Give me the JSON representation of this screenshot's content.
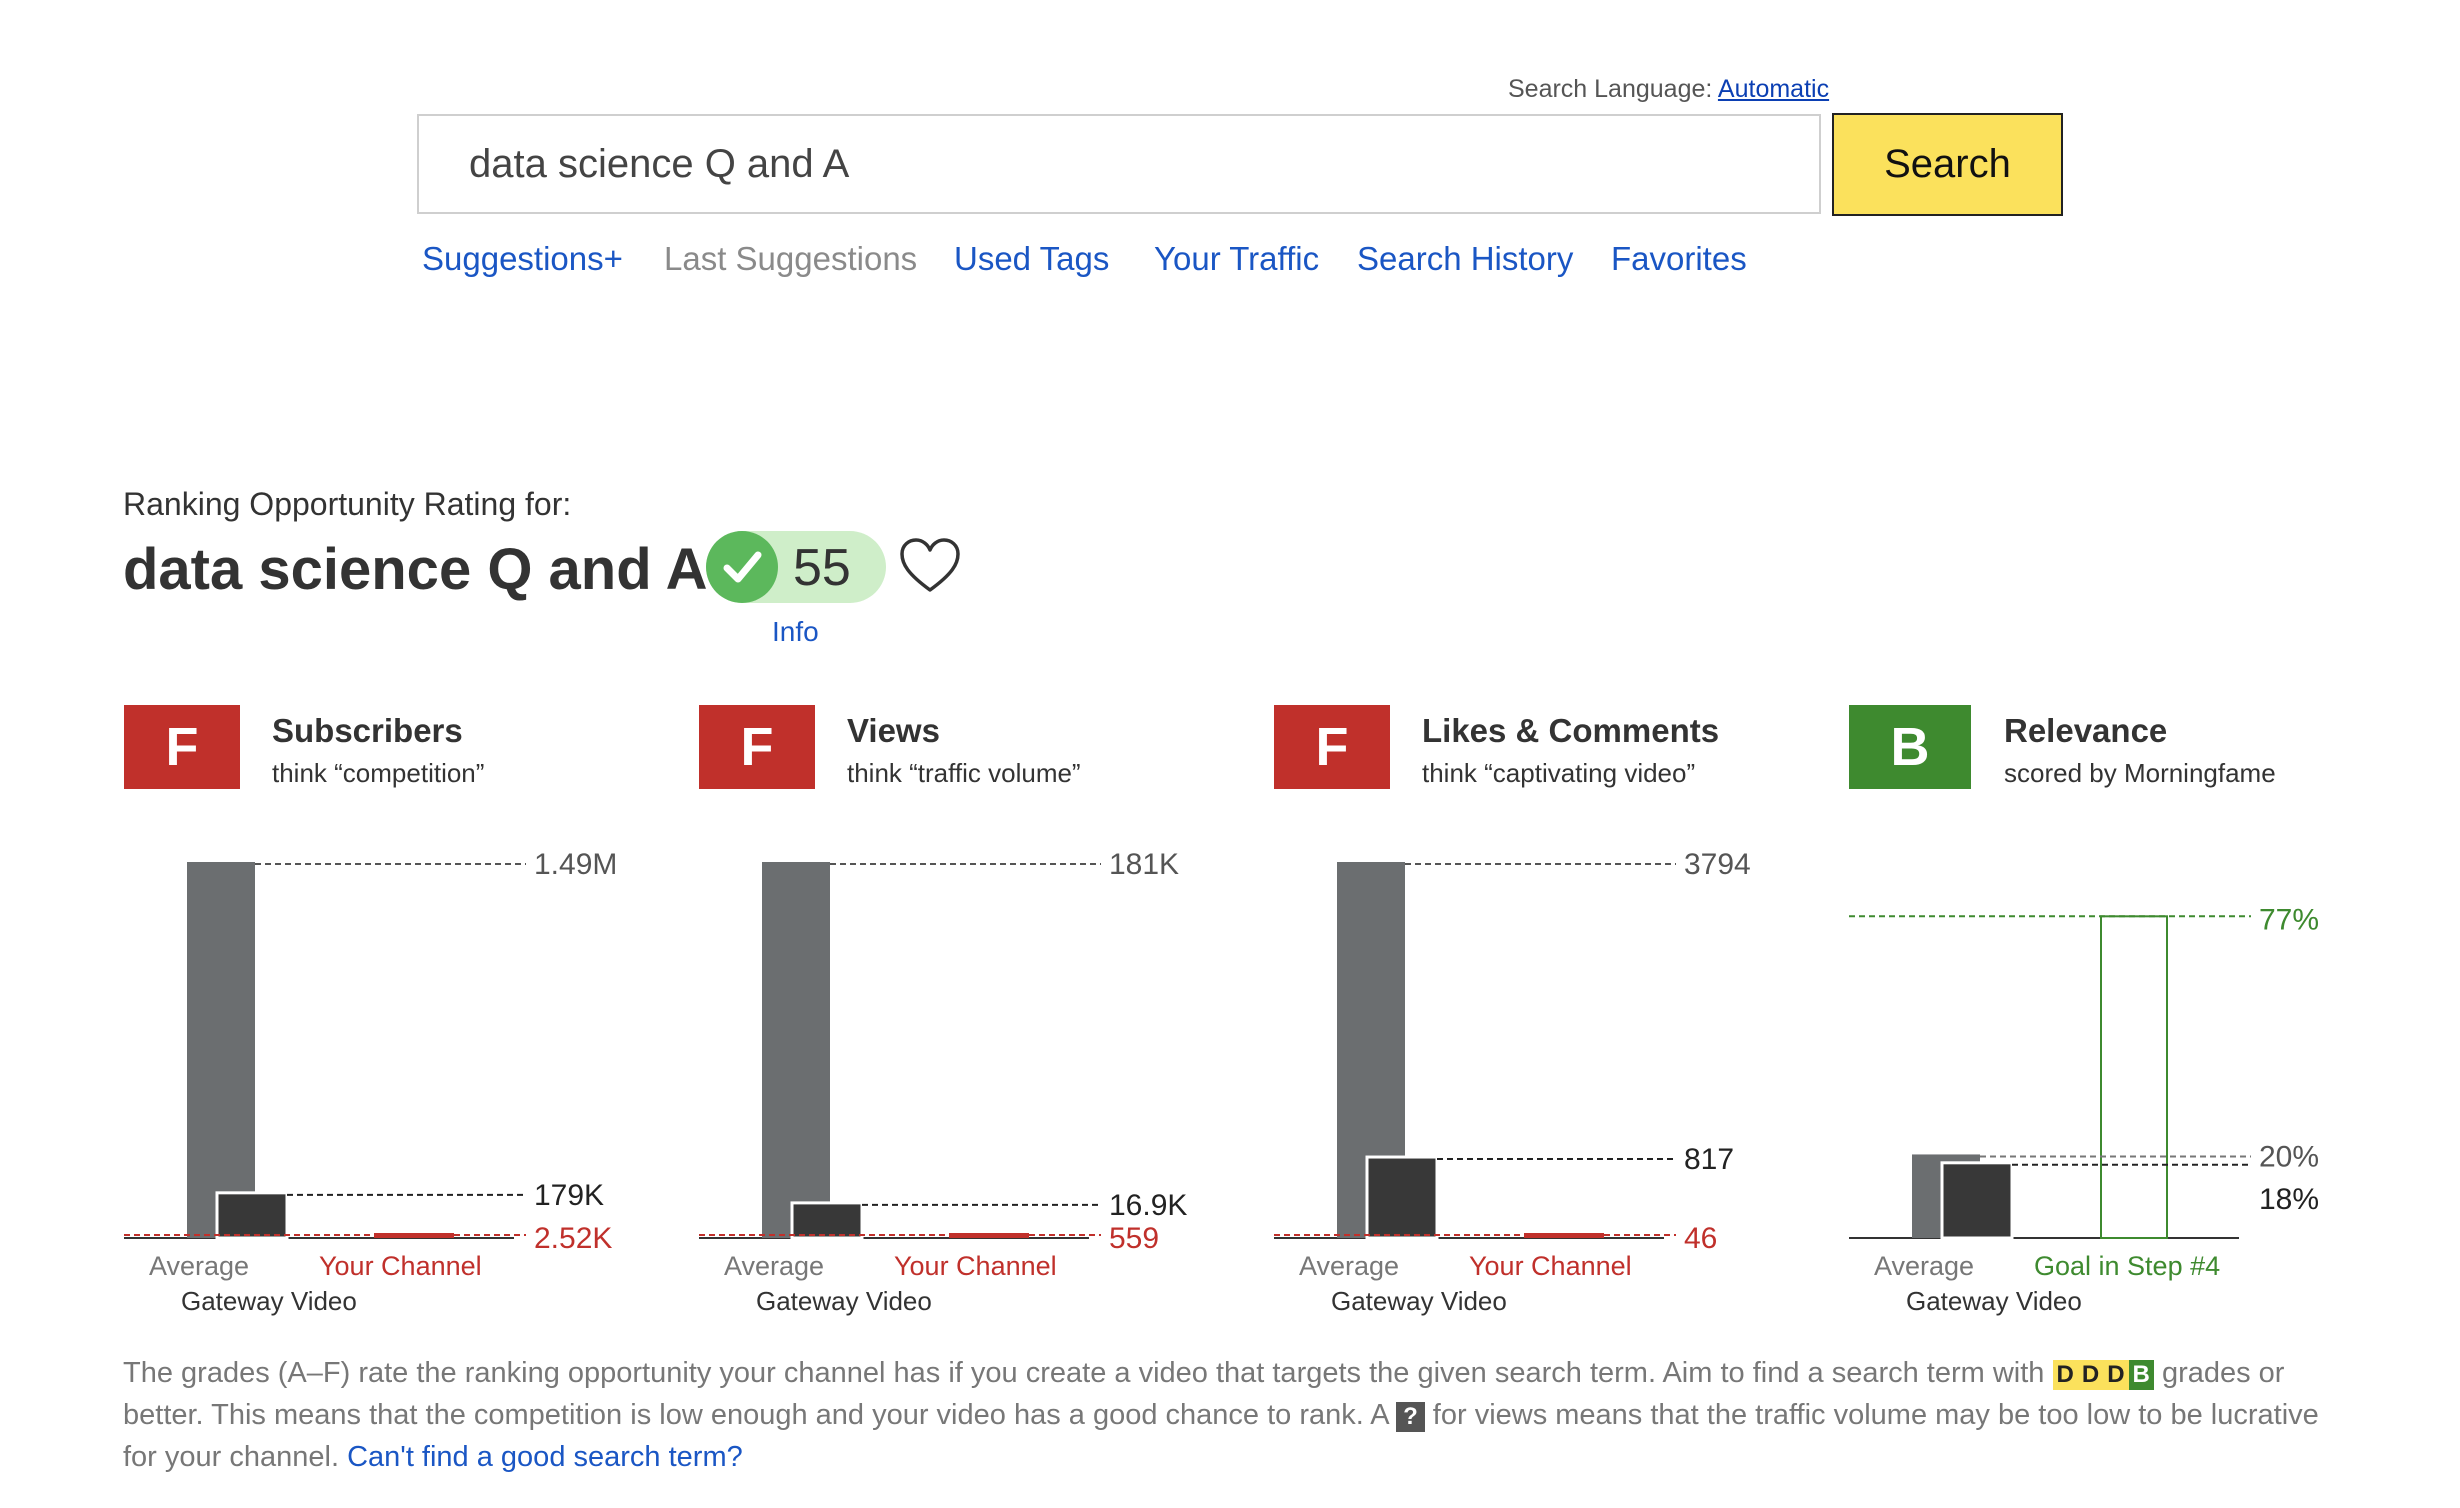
{
  "search": {
    "language_label": "Search Language:",
    "language_value": "Automatic",
    "query": "data science Q and A",
    "button_label": "Search"
  },
  "nav": {
    "suggestions_plus": "Suggestions+",
    "last_suggestions": "Last Suggestions",
    "used_tags": "Used Tags",
    "your_traffic": "Your Traffic",
    "search_history": "Search History",
    "favorites": "Favorites"
  },
  "rating": {
    "label": "Ranking Opportunity Rating for:",
    "term": "data science Q and A",
    "score": "55",
    "info_label": "Info"
  },
  "metrics": [
    {
      "grade": "F",
      "title": "Subscribers",
      "subtitle": "think “competition”"
    },
    {
      "grade": "F",
      "title": "Views",
      "subtitle": "think “traffic volume”"
    },
    {
      "grade": "F",
      "title": "Likes & Comments",
      "subtitle": "think “captivating video”"
    },
    {
      "grade": "B",
      "title": "Relevance",
      "subtitle": "scored by Morningfame"
    }
  ],
  "colors": {
    "grade_f": "#c0302b",
    "grade_b": "#3e8a2f",
    "avg_bar": "#6b6e70",
    "gateway_bar": "#383838",
    "channel": "#c0302b",
    "goal": "#3e8a2f",
    "search_button": "#fbe15c",
    "link": "#1a56c4"
  },
  "chart_data": [
    {
      "type": "bar",
      "title": "Subscribers",
      "categories": [
        "Average",
        "Gateway Video",
        "Your Channel"
      ],
      "values": [
        1490000,
        179000,
        2520
      ],
      "value_labels": [
        "1.49M",
        "179K",
        "2.52K"
      ],
      "x_labels": [
        "Average",
        "Your Channel"
      ],
      "sub_label": "Gateway Video"
    },
    {
      "type": "bar",
      "title": "Views",
      "categories": [
        "Average",
        "Gateway Video",
        "Your Channel"
      ],
      "values": [
        181000,
        16900,
        559
      ],
      "value_labels": [
        "181K",
        "16.9K",
        "559"
      ],
      "x_labels": [
        "Average",
        "Your Channel"
      ],
      "sub_label": "Gateway Video"
    },
    {
      "type": "bar",
      "title": "Likes & Comments",
      "categories": [
        "Average",
        "Gateway Video",
        "Your Channel"
      ],
      "values": [
        3794,
        817,
        46
      ],
      "value_labels": [
        "3794",
        "817",
        "46"
      ],
      "x_labels": [
        "Average",
        "Your Channel"
      ],
      "sub_label": "Gateway Video"
    },
    {
      "type": "bar",
      "title": "Relevance",
      "categories": [
        "Average",
        "Gateway Video",
        "Goal in Step #4"
      ],
      "values": [
        20,
        18,
        77
      ],
      "value_labels": [
        "20%",
        "18%",
        "77%"
      ],
      "ylim": [
        0,
        100
      ],
      "x_labels": [
        "Average",
        "Goal in Step #4"
      ],
      "sub_label": "Gateway Video"
    }
  ],
  "footer": {
    "text1": "The grades (A–F) rate the ranking opportunity your channel has if you create a video that targets the given search term. Aim to find a search term with",
    "chip1": "D",
    "chip2": "D",
    "chip3": "D",
    "chip4": "B",
    "text2": "grades or better. This means that the competition is low enough and your video has a good chance to rank. A",
    "qchip": "?",
    "text3": "for views means that the traffic volume may be too low to be lucrative for your channel.",
    "link": "Can't find a good search term?"
  }
}
